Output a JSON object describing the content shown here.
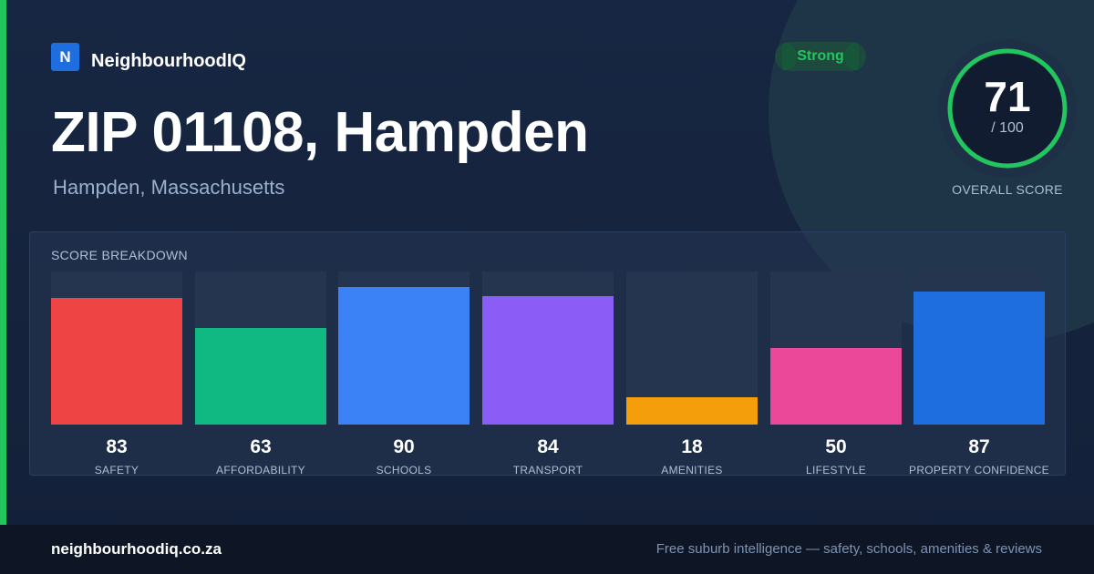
{
  "brand": {
    "logo_letter": "N",
    "name": "NeighbourhoodIQ",
    "accent_color": "#22c55e"
  },
  "header": {
    "title": "ZIP 01108, Hampden",
    "subtitle": "Hampden, Massachusetts"
  },
  "badge": {
    "label": "Strong",
    "color": "#22c55e"
  },
  "overall": {
    "score": 71,
    "score_text": "71",
    "max_text": "/ 100",
    "caption": "OVERALL SCORE",
    "ring_color": "#22c55e"
  },
  "breakdown": {
    "title": "SCORE BREAKDOWN",
    "max": 100,
    "categories": [
      {
        "label": "SAFETY",
        "value": 83,
        "color": "#ef4444"
      },
      {
        "label": "AFFORDABILITY",
        "value": 63,
        "color": "#10b981"
      },
      {
        "label": "SCHOOLS",
        "value": 90,
        "color": "#3b82f6"
      },
      {
        "label": "TRANSPORT",
        "value": 84,
        "color": "#8b5cf6"
      },
      {
        "label": "AMENITIES",
        "value": 18,
        "color": "#f59e0b"
      },
      {
        "label": "LIFESTYLE",
        "value": 50,
        "color": "#ec4899"
      },
      {
        "label": "PROPERTY CONFIDENCE",
        "value": 87,
        "color": "#1e6ee0"
      }
    ]
  },
  "footer": {
    "url": "neighbourhoodiq.co.za",
    "tagline": "Free suburb intelligence — safety, schools, amenities & reviews"
  }
}
